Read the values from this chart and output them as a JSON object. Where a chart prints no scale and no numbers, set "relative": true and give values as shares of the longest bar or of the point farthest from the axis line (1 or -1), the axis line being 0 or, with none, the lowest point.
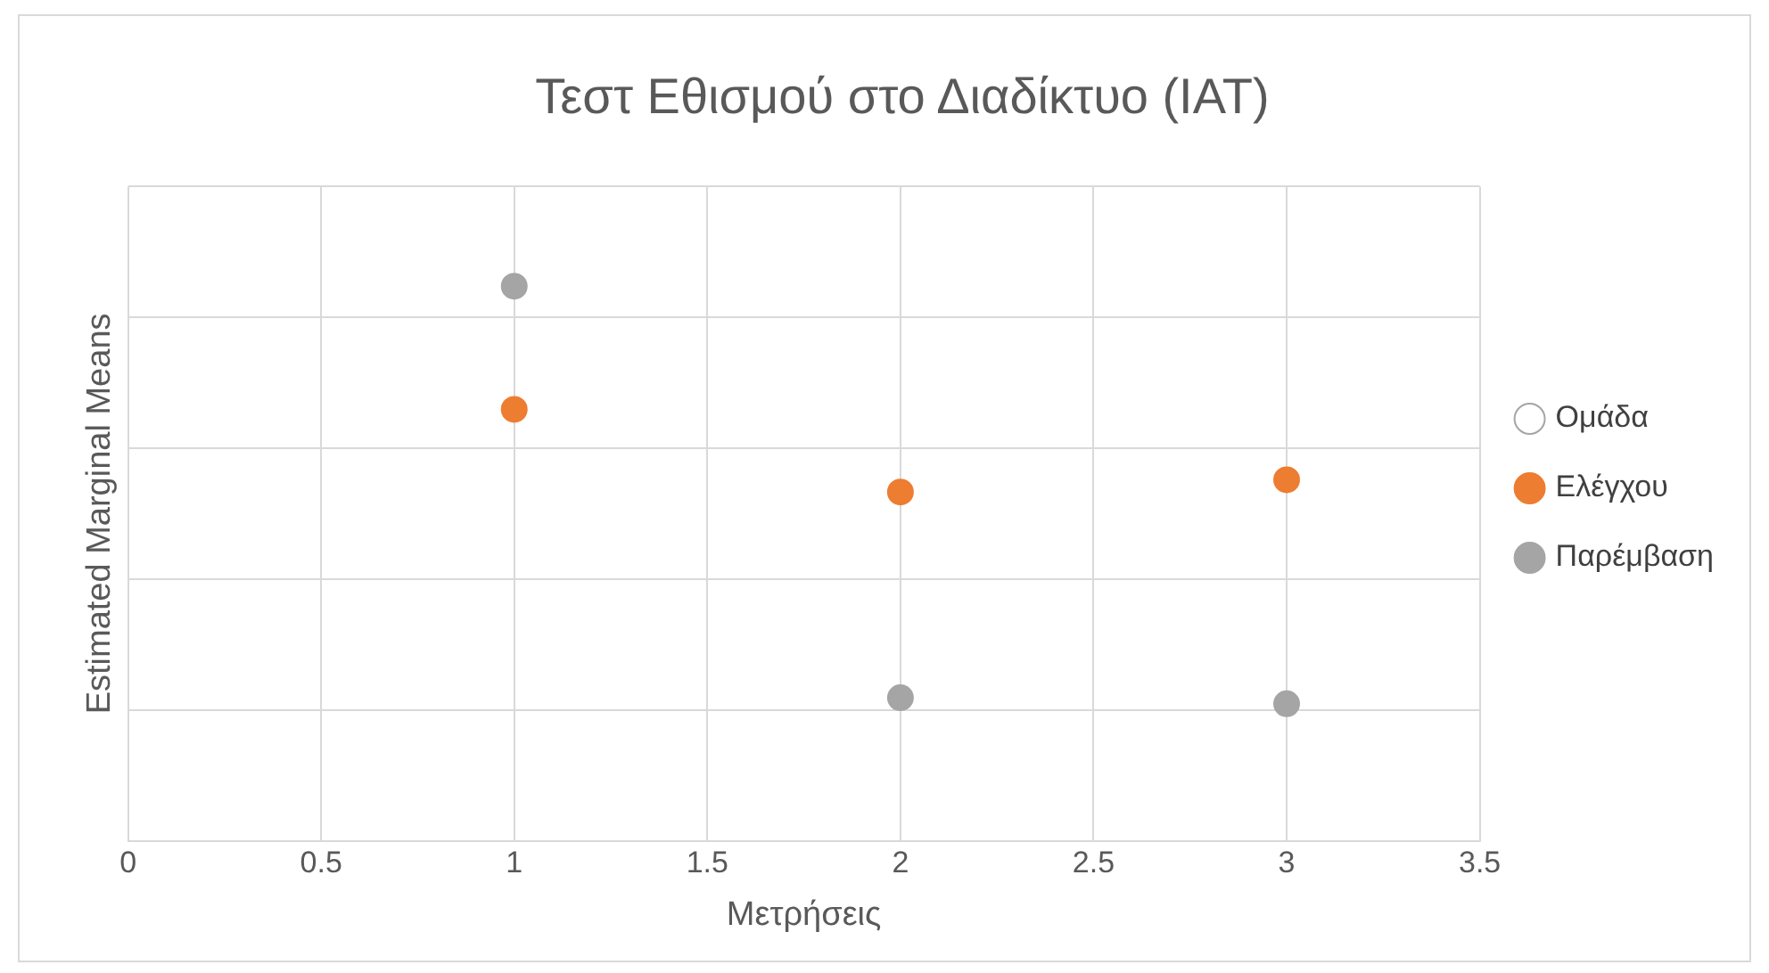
{
  "chart_data": {
    "type": "scatter",
    "title": "Τεστ Εθισμού στο Διαδίκτυο (IAT)",
    "xlabel": "Μετρήσεις",
    "ylabel": "Estimated Marginal Means",
    "relative": true,
    "x": [
      1,
      2,
      3
    ],
    "series": [
      {
        "name": "Ομάδα",
        "color": "#ffffff",
        "values": [
          null,
          null,
          null
        ]
      },
      {
        "name": "Ελέγχου",
        "color": "#ed7d31",
        "values": [
          0.778,
          0.629,
          0.651
        ]
      },
      {
        "name": "Παρέμβαση",
        "color": "#a5a5a5",
        "values": [
          1,
          0.258,
          0.247
        ]
      }
    ],
    "xlim": [
      0,
      3.5
    ],
    "xticks": [
      0,
      0.5,
      1,
      1.5,
      2,
      2.5,
      3,
      3.5
    ],
    "grid": true,
    "legend": "right",
    "marker": "circle"
  }
}
